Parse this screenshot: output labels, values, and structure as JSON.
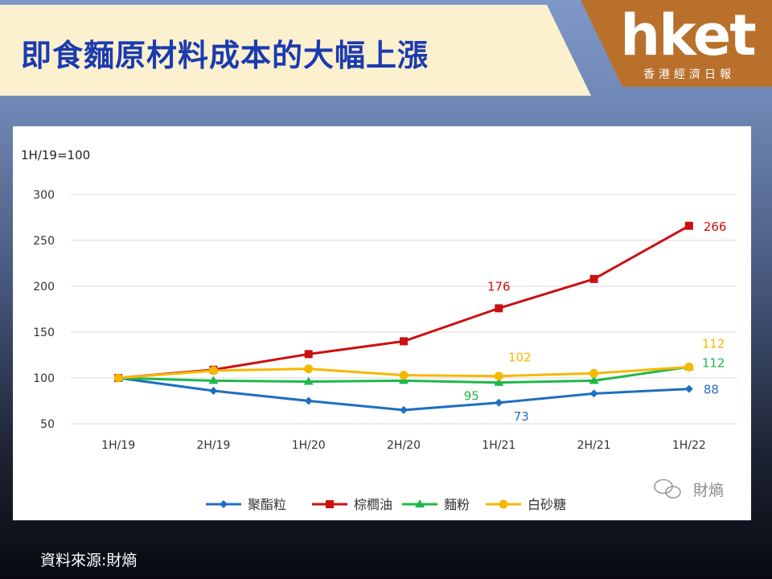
{
  "header": {
    "title": "即食麵原材料成本的大幅上漲"
  },
  "logo": {
    "word": "hket",
    "subtitle": "香港經濟日報"
  },
  "source": {
    "text": "資料來源:財熵"
  },
  "watermark": {
    "text": "財熵",
    "icon": "wechat-icon"
  },
  "chart_data": {
    "type": "line",
    "unit_label": "1H/19=100",
    "categories": [
      "1H/19",
      "2H/19",
      "1H/20",
      "2H/20",
      "1H/21",
      "2H/21",
      "1H/22"
    ],
    "ylim": [
      50,
      300
    ],
    "yticks": [
      50,
      100,
      150,
      200,
      250,
      300
    ],
    "grid": true,
    "legend_position": "bottom",
    "series": [
      {
        "name": "聚酯粒",
        "color": "#1f6fc0",
        "marker": "diamond",
        "values": [
          100,
          86,
          75,
          65,
          73,
          83,
          88
        ],
        "labels": [
          {
            "index": 4,
            "text": "73",
            "placement": "below"
          },
          {
            "index": 6,
            "text": "88",
            "placement": "right"
          }
        ]
      },
      {
        "name": "棕櫚油",
        "color": "#cc1010",
        "marker": "square",
        "values": [
          100,
          109,
          126,
          140,
          176,
          208,
          266
        ],
        "labels": [
          {
            "index": 4,
            "text": "176",
            "placement": "above"
          },
          {
            "index": 6,
            "text": "266",
            "placement": "right"
          }
        ]
      },
      {
        "name": "麵粉",
        "color": "#1fb84a",
        "marker": "triangle",
        "values": [
          100,
          97,
          96,
          97,
          95,
          97,
          112
        ],
        "labels": [
          {
            "index": 4,
            "text": "95",
            "placement": "below-left"
          },
          {
            "index": 6,
            "text": "112",
            "placement": "right-below"
          }
        ]
      },
      {
        "name": "白砂糖",
        "color": "#f5b800",
        "marker": "circle",
        "values": [
          100,
          108,
          110,
          103,
          102,
          105,
          112
        ],
        "labels": [
          {
            "index": 4,
            "text": "102",
            "placement": "above-right"
          },
          {
            "index": 6,
            "text": "112",
            "placement": "right-above"
          }
        ]
      }
    ]
  }
}
